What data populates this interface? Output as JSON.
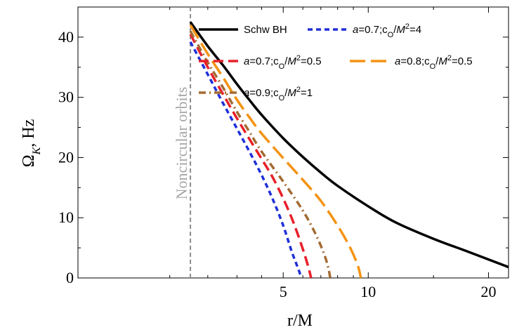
{
  "chart_data": {
    "type": "line",
    "title": "",
    "xlabel": "r/M",
    "ylabel": "Ω_K, Hz",
    "xlim": [
      0,
      22
    ],
    "ylim": [
      0,
      45
    ],
    "xscale": "sqrt",
    "grid": false,
    "legend_position": "top-right",
    "xticks": [
      5,
      10,
      20
    ],
    "yticks": [
      0,
      10,
      20,
      30,
      40
    ],
    "annotation": {
      "text": "Noncircular orbits",
      "x": 1.5
    },
    "series": [
      {
        "name": "Schw BH",
        "color": "#000000",
        "style": "solid",
        "x": [
          1.5,
          2,
          2.5,
          3,
          3.5,
          4,
          5,
          6,
          7,
          8,
          10,
          12,
          15,
          18,
          22
        ],
        "y": [
          42.5,
          38.5,
          35.3,
          32.2,
          29.5,
          27.1,
          23.2,
          20.1,
          17.5,
          15.3,
          11.9,
          9.2,
          6.5,
          4.4,
          1.8
        ]
      },
      {
        "name": "a=0.7;c_O/M^2=4",
        "color": "#1f2fd9",
        "style": "short-dash",
        "x": [
          1.5,
          2,
          2.5,
          3,
          3.5,
          4,
          4.5,
          5,
          5.4,
          5.7,
          5.85,
          5.9
        ],
        "y": [
          39.2,
          33.8,
          29.0,
          24.8,
          20.9,
          17.1,
          13.1,
          8.7,
          4.6,
          2.0,
          0.7,
          0
        ]
      },
      {
        "name": "a=0.7;c_O/M^2=0.5",
        "color": "#e8202a",
        "style": "dashed",
        "x": [
          1.5,
          2,
          2.5,
          3,
          3.5,
          4,
          4.5,
          5,
          5.5,
          6,
          6.3,
          6.45
        ],
        "y": [
          40.5,
          35.0,
          30.5,
          26.5,
          23.0,
          19.8,
          16.7,
          13.2,
          9.3,
          4.8,
          1.8,
          0
        ]
      },
      {
        "name": "a=0.8;c_O/M^2=0.5",
        "color": "#f39314",
        "style": "long-dash",
        "x": [
          1.5,
          2,
          2.5,
          3,
          3.5,
          4,
          5,
          6,
          7,
          8,
          8.8,
          9.3,
          9.5
        ],
        "y": [
          42.0,
          37.2,
          33.3,
          29.6,
          26.6,
          24.0,
          19.9,
          16.3,
          12.8,
          8.7,
          5.0,
          2.0,
          0
        ]
      },
      {
        "name": "a=0.9;c_O/M^2=1",
        "color": "#a36b32",
        "style": "dash-dot",
        "x": [
          1.5,
          2,
          2.5,
          3,
          3.5,
          4,
          5,
          6,
          6.7,
          7.2,
          7.45,
          7.55
        ],
        "y": [
          41.0,
          35.8,
          31.6,
          27.6,
          24.2,
          21.0,
          16.0,
          11.2,
          7.3,
          3.9,
          1.5,
          0
        ]
      }
    ]
  }
}
